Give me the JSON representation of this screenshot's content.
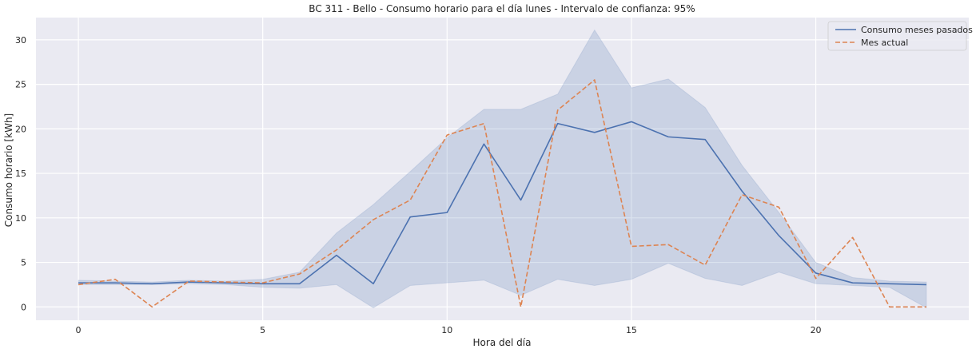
{
  "chart_data": {
    "type": "line",
    "title": "BC 311 - Bello - Consumo horario para el día lunes - Intervalo de confianza: 95%",
    "xlabel": "Hora del día",
    "ylabel": "Consumo horario [kWh]",
    "xlim": [
      -1.15,
      24.15
    ],
    "ylim": [
      -1.5,
      32.5
    ],
    "xticks": [
      0,
      5,
      10,
      15,
      20
    ],
    "yticks": [
      0,
      5,
      10,
      15,
      20,
      25,
      30
    ],
    "grid": true,
    "legend_position": "top-right",
    "x": [
      0,
      1,
      2,
      3,
      4,
      5,
      6,
      7,
      8,
      9,
      10,
      11,
      12,
      13,
      14,
      15,
      16,
      17,
      18,
      19,
      20,
      21,
      22,
      23
    ],
    "series": [
      {
        "name": "Consumo meses pasados",
        "style": "solid",
        "color": "#4c72b0",
        "values": [
          2.7,
          2.7,
          2.6,
          2.8,
          2.7,
          2.6,
          2.6,
          5.8,
          2.6,
          10.1,
          10.6,
          18.3,
          12.0,
          20.6,
          19.6,
          20.8,
          19.1,
          18.8,
          13.0,
          8.0,
          3.8,
          2.7,
          2.6,
          2.5
        ],
        "ci_lower": [
          2.5,
          2.5,
          2.5,
          2.6,
          2.5,
          2.2,
          2.1,
          2.5,
          -0.1,
          2.4,
          2.7,
          3.0,
          1.3,
          3.1,
          2.4,
          3.1,
          4.9,
          3.2,
          2.4,
          3.9,
          2.6,
          2.4,
          2.2,
          -0.1
        ],
        "ci_upper": [
          3.0,
          2.9,
          2.8,
          3.0,
          2.9,
          3.1,
          3.9,
          8.3,
          11.5,
          15.2,
          19.0,
          22.2,
          22.2,
          23.9,
          31.1,
          24.6,
          25.6,
          22.4,
          15.9,
          10.6,
          5.0,
          3.3,
          2.9,
          2.8
        ]
      },
      {
        "name": "Mes actual",
        "style": "dashed",
        "color": "#dd8452",
        "values": [
          2.5,
          3.1,
          0.0,
          2.9,
          2.8,
          2.7,
          3.7,
          6.4,
          9.8,
          12.0,
          19.3,
          20.6,
          0.0,
          22.1,
          25.5,
          6.8,
          7.0,
          4.7,
          12.6,
          11.2,
          3.2,
          7.8,
          0.0,
          0.0
        ]
      }
    ],
    "colors": {
      "plot_background": "#eaeaf2",
      "grid": "#ffffff",
      "ci_fill": "#4c72b0"
    }
  }
}
